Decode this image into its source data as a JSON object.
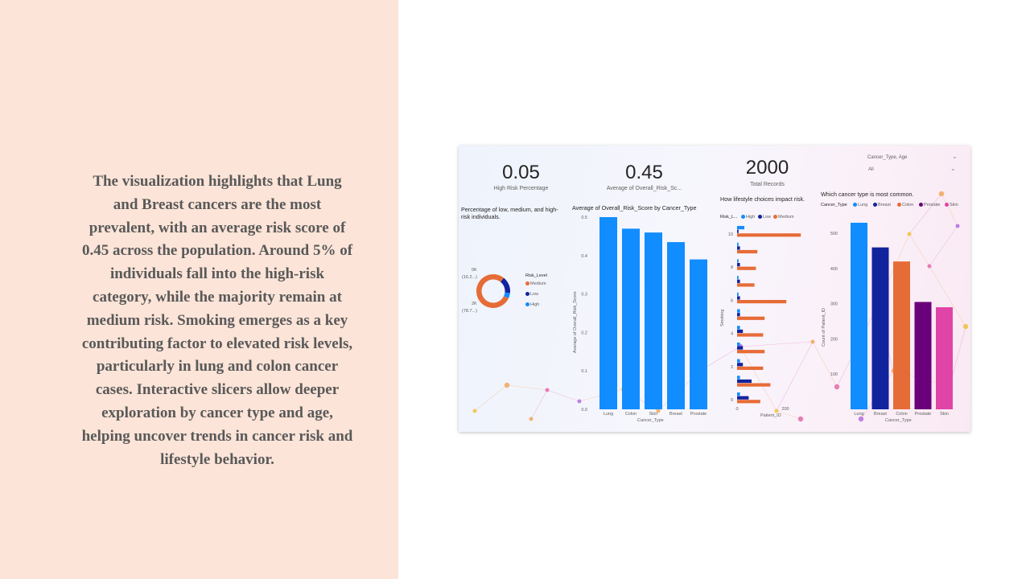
{
  "slide": {
    "text": "The visualization highlights that Lung and Breast cancers are the most prevalent, with an average risk score of 0.45 across the population. Around 5% of individuals fall into the high-risk category, while the majority remain at medium risk. Smoking emerges as a key contributing factor to elevated risk levels, particularly in lung and colon cancer cases. Interactive slicers allow deeper exploration by cancer type and age, helping uncover trends in cancer risk and lifestyle behavior."
  },
  "dashboard": {
    "kpis": [
      {
        "value": "0.05",
        "label": "High Risk Percentage"
      },
      {
        "value": "0.45",
        "label": "Average of Overall_Risk_Sc..."
      },
      {
        "value": "2000",
        "label": "Total Records"
      }
    ],
    "slicer": {
      "title": "Cancer_Type, Age",
      "value": "All"
    },
    "colors": {
      "high": "#118dff",
      "low": "#12239e",
      "medium": "#e66c37",
      "lung": "#118dff",
      "breast": "#12239e",
      "colon": "#e66c37",
      "prostate": "#6b007b",
      "skin": "#e044a7"
    }
  },
  "chart_data": [
    {
      "type": "pie",
      "title": "Percentage of low, medium, and high-risk individuals.",
      "legend_title": "Risk_Level",
      "legend": [
        "Medium",
        "Low",
        "High"
      ],
      "slices": [
        {
          "name": "Medium",
          "value": 78.7
        },
        {
          "name": "Low",
          "value": 16.2
        },
        {
          "name": "High",
          "value": 5.1
        }
      ],
      "labels": {
        "top_a": "0K",
        "top_b": "(16.2...)",
        "bottom_a": "2K",
        "bottom_b": "(78.7...)"
      }
    },
    {
      "type": "bar",
      "title": "Average of Overall_Risk_Score by Cancer_Type",
      "xlabel": "Cancer_Type",
      "ylabel": "Average of Overall_Risk_Score",
      "categories": [
        "Lung",
        "Colon",
        "Skin",
        "Breast",
        "Prostate"
      ],
      "values": [
        0.5,
        0.47,
        0.46,
        0.435,
        0.39
      ],
      "ylim": [
        0,
        0.5
      ],
      "yticks": [
        "0.0",
        "0.1",
        "0.2",
        "0.3",
        "0.4",
        "0.5"
      ]
    },
    {
      "type": "bar",
      "orientation": "horizontal",
      "title": "How lifestyle choices impact risk.",
      "legend_title": "Risk_L...",
      "legend": [
        "High",
        "Low",
        "Medium"
      ],
      "xlabel": "Patient_ID",
      "ylabel": "Smoking",
      "xlim": [
        0,
        200
      ],
      "xticks": [
        "0",
        "200"
      ],
      "yticks": [
        "10",
        "8",
        "6",
        "4",
        "2",
        "0"
      ],
      "categories": [
        "10",
        "9",
        "8",
        "7",
        "6",
        "5",
        "4",
        "3",
        "2",
        "1",
        "0"
      ],
      "series": [
        {
          "name": "High",
          "values": [
            20,
            4,
            4,
            4,
            4,
            8,
            8,
            8,
            8,
            8,
            8
          ]
        },
        {
          "name": "Low",
          "values": [
            4,
            8,
            8,
            8,
            8,
            8,
            16,
            16,
            16,
            40,
            32
          ]
        },
        {
          "name": "Medium",
          "values": [
            176,
            56,
            52,
            48,
            136,
            76,
            72,
            76,
            72,
            92,
            64
          ]
        }
      ]
    },
    {
      "type": "bar",
      "title": "Which cancer type is most common.",
      "legend_title": "Cancer_Type",
      "legend": [
        "Lung",
        "Breast",
        "Colon",
        "Prostate",
        "Skin"
      ],
      "xlabel": "Cancer_Type",
      "ylabel": "Count of Patient_ID",
      "categories": [
        "Lung",
        "Breast",
        "Colon",
        "Prostate",
        "Skin"
      ],
      "values": [
        530,
        460,
        420,
        305,
        290
      ],
      "ylim": [
        0,
        500
      ],
      "yticks": [
        "100",
        "200",
        "300",
        "400",
        "500"
      ]
    }
  ]
}
